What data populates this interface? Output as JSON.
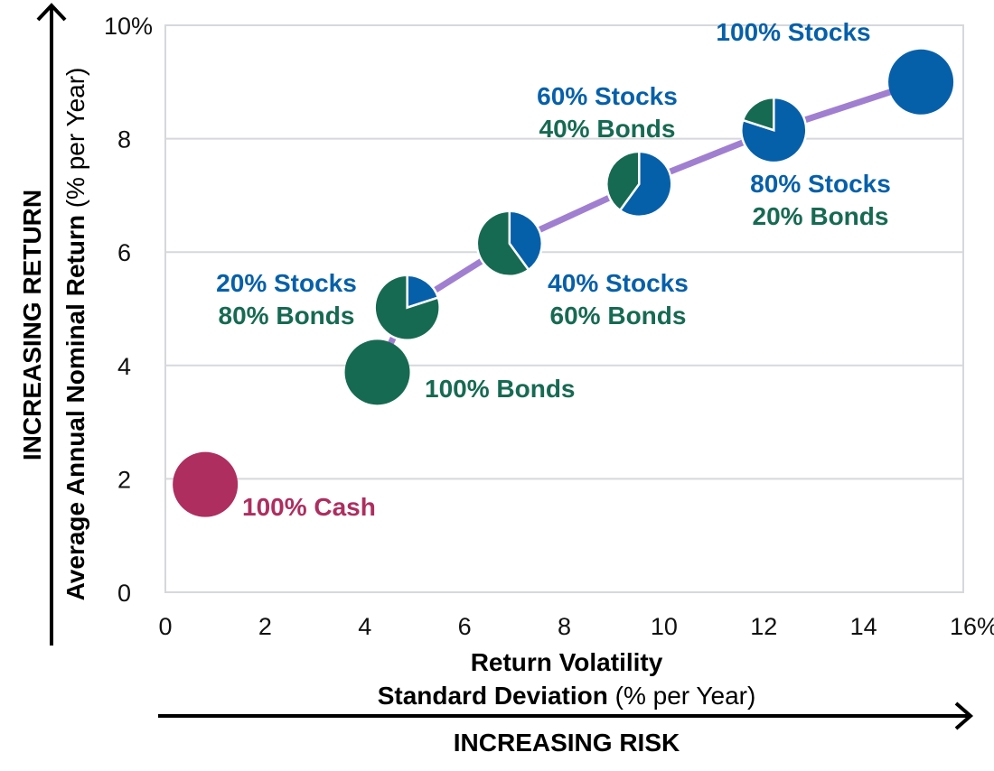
{
  "chart_data": {
    "type": "scatter",
    "xlabel_line1": "Return Volatility",
    "xlabel_line2_bold": "Standard Deviation",
    "xlabel_line2_unit": " (% per Year)",
    "ylabel_bold": "Average Annual Nominal Return",
    "ylabel_unit": " (% per Year)",
    "x_arrow_label": "INCREASING RISK",
    "y_arrow_label": "INCREASING RETURN",
    "xlim": [
      0,
      16
    ],
    "ylim": [
      0,
      10
    ],
    "x_ticks": [
      "0",
      "2",
      "4",
      "6",
      "8",
      "10",
      "12",
      "14",
      "16%"
    ],
    "y_ticks": [
      "0",
      "2",
      "4",
      "6",
      "8",
      "10%"
    ],
    "grid": "horizontal",
    "colors": {
      "stocks": "#0660a9",
      "bonds": "#176a52",
      "cash": "#ad2e5f",
      "line": "#a07fd0"
    },
    "points": [
      {
        "label": [
          "100% Cash"
        ],
        "x": 0.8,
        "y": 1.9,
        "stocks": 0,
        "bonds": 0,
        "cash": 100,
        "on_line": false
      },
      {
        "label": [
          "100% Bonds"
        ],
        "x": 4.25,
        "y": 3.88,
        "stocks": 0,
        "bonds": 100,
        "cash": 0,
        "on_line": true
      },
      {
        "label": [
          "20% Stocks",
          "80% Bonds"
        ],
        "x": 4.85,
        "y": 5.02,
        "stocks": 20,
        "bonds": 80,
        "cash": 0,
        "on_line": true
      },
      {
        "label": [
          "40% Stocks",
          "60% Bonds"
        ],
        "x": 6.9,
        "y": 6.15,
        "stocks": 40,
        "bonds": 60,
        "cash": 0,
        "on_line": true
      },
      {
        "label": [
          "60% Stocks",
          "40% Bonds"
        ],
        "x": 9.5,
        "y": 7.2,
        "stocks": 60,
        "bonds": 40,
        "cash": 0,
        "on_line": true
      },
      {
        "label": [
          "80% Stocks",
          "20% Bonds"
        ],
        "x": 12.2,
        "y": 8.15,
        "stocks": 80,
        "bonds": 20,
        "cash": 0,
        "on_line": true
      },
      {
        "label": [
          "100% Stocks"
        ],
        "x": 15.15,
        "y": 9.0,
        "stocks": 100,
        "bonds": 0,
        "cash": 0,
        "on_line": true
      }
    ]
  }
}
